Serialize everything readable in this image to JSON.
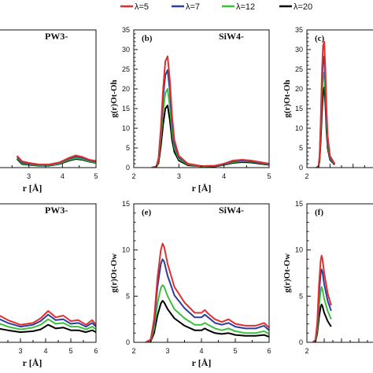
{
  "legend": {
    "entries": [
      {
        "label": "λ=5",
        "color": "#e03030"
      },
      {
        "label": "λ=7",
        "color": "#2b3f9e"
      },
      {
        "label": "λ=12",
        "color": "#3cbf3c"
      },
      {
        "label": "λ=20",
        "color": "#000000"
      }
    ]
  },
  "chart_data": [
    {
      "type": "line",
      "panel": "",
      "molecule": "PW3-",
      "xlabel": "r [Å]",
      "ylabel": "",
      "xlim": [
        2,
        5
      ],
      "ylim": [
        0,
        35
      ],
      "xticks": [
        3,
        4,
        5
      ],
      "yticks": [],
      "series": [
        {
          "legend": "λ=5",
          "x": [
            2.65,
            2.8,
            3.0,
            3.3,
            3.6,
            3.9,
            4.2,
            4.4,
            4.6,
            4.8,
            5.0
          ],
          "y": [
            3.0,
            1.6,
            1.2,
            0.8,
            0.8,
            1.3,
            2.5,
            3.1,
            2.7,
            2.0,
            1.7
          ]
        },
        {
          "legend": "λ=7",
          "x": [
            2.65,
            2.8,
            3.0,
            3.3,
            3.6,
            3.9,
            4.2,
            4.4,
            4.6,
            4.8,
            5.0
          ],
          "y": [
            2.8,
            1.3,
            1.0,
            0.7,
            0.7,
            1.2,
            2.3,
            2.8,
            2.5,
            1.8,
            1.5
          ]
        },
        {
          "legend": "λ=12",
          "x": [
            2.65,
            2.8,
            3.0,
            3.3,
            3.6,
            3.9,
            4.2,
            4.4,
            4.6,
            4.8,
            5.0
          ],
          "y": [
            2.5,
            1.1,
            0.8,
            0.6,
            0.6,
            1.0,
            2.0,
            2.4,
            2.2,
            1.6,
            1.3
          ]
        },
        {
          "legend": "λ=20",
          "x": [
            2.65,
            2.8,
            3.0,
            3.3,
            3.6,
            3.9,
            4.2,
            4.4,
            4.6,
            4.8,
            5.0
          ],
          "y": [
            2.2,
            0.9,
            0.7,
            0.5,
            0.5,
            0.9,
            1.8,
            2.2,
            2.0,
            1.5,
            1.2
          ]
        }
      ]
    },
    {
      "type": "line",
      "panel": "(b)",
      "molecule": "SiW4-",
      "xlabel": "r [Å]",
      "ylabel": "g(r)Ot-Oh",
      "xlim": [
        2,
        5
      ],
      "ylim": [
        0,
        35
      ],
      "xticks": [
        2,
        3,
        4,
        5
      ],
      "yticks": [
        0,
        5,
        10,
        15,
        20,
        25,
        30,
        35
      ],
      "series": [
        {
          "legend": "λ=5",
          "x": [
            2.4,
            2.5,
            2.55,
            2.6,
            2.65,
            2.7,
            2.75,
            2.8,
            2.85,
            2.9,
            3.0,
            3.2,
            3.5,
            3.8,
            4.0,
            4.2,
            4.4,
            4.6,
            4.8,
            5.0
          ],
          "y": [
            0,
            0.3,
            2.5,
            10,
            20,
            27,
            28.3,
            22,
            13,
            7,
            3,
            1,
            0.4,
            0.5,
            1,
            1.8,
            2,
            1.8,
            1.4,
            1
          ]
        },
        {
          "legend": "λ=7",
          "x": [
            2.4,
            2.5,
            2.55,
            2.6,
            2.65,
            2.7,
            2.75,
            2.8,
            2.85,
            2.9,
            3.0,
            3.2,
            3.5,
            3.8,
            4.0,
            4.2,
            4.4,
            4.6,
            4.8,
            5.0
          ],
          "y": [
            0,
            0.3,
            2.2,
            9,
            18,
            23.5,
            24.8,
            19.5,
            11.5,
            6,
            2.6,
            0.9,
            0.4,
            0.4,
            0.9,
            1.6,
            1.8,
            1.6,
            1.3,
            0.9
          ]
        },
        {
          "legend": "λ=12",
          "x": [
            2.4,
            2.5,
            2.55,
            2.6,
            2.65,
            2.7,
            2.75,
            2.8,
            2.85,
            2.9,
            3.0,
            3.2,
            3.5,
            3.8,
            4.0,
            4.2,
            4.4,
            4.6,
            4.8,
            5.0
          ],
          "y": [
            0,
            0.2,
            1.8,
            7.5,
            14.5,
            19,
            20,
            15.5,
            9,
            5,
            2.2,
            0.8,
            0.3,
            0.4,
            0.8,
            1.4,
            1.6,
            1.5,
            1.2,
            0.8
          ]
        },
        {
          "legend": "λ=20",
          "x": [
            2.4,
            2.5,
            2.55,
            2.6,
            2.65,
            2.7,
            2.75,
            2.8,
            2.85,
            2.9,
            3.0,
            3.2,
            3.5,
            3.8,
            4.0,
            4.2,
            4.4,
            4.6,
            4.8,
            5.0
          ],
          "y": [
            0,
            0.2,
            1.2,
            5.5,
            11,
            15,
            15.8,
            12,
            7,
            4,
            1.8,
            0.6,
            0.3,
            0.3,
            0.7,
            1.2,
            1.4,
            1.3,
            1,
            0.7
          ]
        }
      ]
    },
    {
      "type": "line",
      "panel": "(c)",
      "molecule": "",
      "xlabel": "",
      "ylabel": "g(r)Ot-Oh",
      "xlim": [
        2,
        5
      ],
      "ylim": [
        0,
        35
      ],
      "xticks": [
        2
      ],
      "yticks": [
        0,
        5,
        10,
        15,
        20,
        25,
        30,
        35
      ],
      "series": [
        {
          "legend": "λ=5",
          "x": [
            2.4,
            2.5,
            2.55,
            2.6,
            2.65,
            2.7,
            2.75,
            2.8,
            2.85,
            2.9,
            3.0,
            3.2
          ],
          "y": [
            0,
            0.3,
            3,
            12,
            24,
            31,
            32,
            25,
            15,
            8,
            3,
            1
          ]
        },
        {
          "legend": "λ=7",
          "x": [
            2.4,
            2.5,
            2.55,
            2.6,
            2.65,
            2.7,
            2.75,
            2.8,
            2.85,
            2.9,
            3.0,
            3.2
          ],
          "y": [
            0,
            0.3,
            2.6,
            10.5,
            21,
            27,
            28.3,
            22,
            13,
            7,
            2.6,
            0.9
          ]
        },
        {
          "legend": "λ=12",
          "x": [
            2.4,
            2.5,
            2.55,
            2.6,
            2.65,
            2.7,
            2.75,
            2.8,
            2.85,
            2.9,
            3.0,
            3.2
          ],
          "y": [
            0,
            0.2,
            2.2,
            9,
            18,
            23,
            24.2,
            19,
            11.5,
            6,
            2.3,
            0.8
          ]
        },
        {
          "legend": "λ=20",
          "x": [
            2.4,
            2.5,
            2.55,
            2.6,
            2.65,
            2.7,
            2.75,
            2.8,
            2.85,
            2.9,
            3.0,
            3.2
          ],
          "y": [
            0,
            0.2,
            1.6,
            7,
            14,
            19,
            20.4,
            16,
            9.5,
            5,
            2,
            0.7
          ]
        }
      ]
    },
    {
      "type": "line",
      "panel": "",
      "molecule": "PW3-",
      "xlabel": "r [Å]",
      "ylabel": "",
      "xlim": [
        2,
        6
      ],
      "ylim": [
        0,
        15
      ],
      "xticks": [
        3,
        4,
        5,
        6
      ],
      "yticks": [],
      "series": [
        {
          "legend": "λ=5",
          "x": [
            2.1,
            2.5,
            3.0,
            3.5,
            3.8,
            4.1,
            4.4,
            4.7,
            5.0,
            5.3,
            5.6,
            5.85,
            6.0
          ],
          "y": [
            3.0,
            2.4,
            1.9,
            2.1,
            2.6,
            3.4,
            2.7,
            2.9,
            2.3,
            2.4,
            1.9,
            2.4,
            1.9
          ]
        },
        {
          "legend": "λ=7",
          "x": [
            2.1,
            2.5,
            3.0,
            3.5,
            3.8,
            4.1,
            4.4,
            4.7,
            5.0,
            5.3,
            5.6,
            5.85,
            6.0
          ],
          "y": [
            2.6,
            2.1,
            1.7,
            1.9,
            2.3,
            3.0,
            2.4,
            2.5,
            2.0,
            2.1,
            1.7,
            2.1,
            1.7
          ]
        },
        {
          "legend": "λ=12",
          "x": [
            2.1,
            2.5,
            3.0,
            3.5,
            3.8,
            4.1,
            4.4,
            4.7,
            5.0,
            5.3,
            5.6,
            5.85,
            6.0
          ],
          "y": [
            2.1,
            1.7,
            1.4,
            1.6,
            1.9,
            2.5,
            2.0,
            2.1,
            1.7,
            1.7,
            1.4,
            1.7,
            1.4
          ]
        },
        {
          "legend": "λ=20",
          "x": [
            2.1,
            2.5,
            3.0,
            3.5,
            3.8,
            4.1,
            4.4,
            4.7,
            5.0,
            5.3,
            5.6,
            5.85,
            6.0
          ],
          "y": [
            1.5,
            1.3,
            1.1,
            1.2,
            1.4,
            1.9,
            1.5,
            1.6,
            1.3,
            1.3,
            1.1,
            1.3,
            1.1
          ]
        }
      ]
    },
    {
      "type": "line",
      "panel": "(e)",
      "molecule": "SiW4-",
      "xlabel": "r [Å]",
      "ylabel": "g(r)Ot-Ow",
      "xlim": [
        2,
        6
      ],
      "ylim": [
        0,
        15
      ],
      "xticks": [
        2,
        3,
        4,
        5,
        6
      ],
      "yticks": [
        0,
        5,
        10,
        15
      ],
      "series": [
        {
          "legend": "λ=5",
          "x": [
            2.35,
            2.5,
            2.6,
            2.7,
            2.8,
            2.85,
            2.9,
            3.0,
            3.2,
            3.5,
            3.8,
            4.0,
            4.1,
            4.2,
            4.4,
            4.6,
            4.8,
            5.0,
            5.3,
            5.6,
            5.85,
            6.0
          ],
          "y": [
            0,
            0.3,
            2.5,
            7,
            10,
            10.7,
            10.3,
            8.5,
            6,
            4.3,
            3.2,
            3.2,
            3.5,
            3.1,
            2.5,
            2.2,
            2.5,
            2.0,
            1.8,
            1.8,
            2.1,
            1.6
          ]
        },
        {
          "legend": "λ=7",
          "x": [
            2.35,
            2.5,
            2.6,
            2.7,
            2.8,
            2.85,
            2.9,
            3.0,
            3.2,
            3.5,
            3.8,
            4.0,
            4.1,
            4.2,
            4.4,
            4.6,
            4.8,
            5.0,
            5.3,
            5.6,
            5.85,
            6.0
          ],
          "y": [
            0,
            0.3,
            2.1,
            6,
            8.5,
            9.0,
            8.7,
            7.2,
            5.1,
            3.7,
            2.7,
            2.7,
            3.0,
            2.7,
            2.1,
            1.9,
            2.1,
            1.7,
            1.5,
            1.5,
            1.8,
            1.3
          ]
        },
        {
          "legend": "λ=12",
          "x": [
            2.35,
            2.5,
            2.6,
            2.7,
            2.8,
            2.85,
            2.9,
            3.0,
            3.2,
            3.5,
            3.8,
            4.0,
            4.1,
            4.2,
            4.4,
            4.6,
            4.8,
            5.0,
            5.3,
            5.6,
            5.85,
            6.0
          ],
          "y": [
            0,
            0.2,
            1.5,
            4.2,
            5.9,
            6.2,
            6.0,
            5.0,
            3.6,
            2.6,
            1.9,
            1.9,
            2.1,
            1.9,
            1.5,
            1.3,
            1.5,
            1.2,
            1.0,
            1.0,
            1.2,
            0.9
          ]
        },
        {
          "legend": "λ=20",
          "x": [
            2.35,
            2.5,
            2.6,
            2.7,
            2.8,
            2.85,
            2.9,
            3.0,
            3.2,
            3.5,
            3.8,
            4.0,
            4.1,
            4.2,
            4.4,
            4.6,
            4.8,
            5.0,
            5.3,
            5.6,
            5.85,
            6.0
          ],
          "y": [
            0,
            0.1,
            1.0,
            2.9,
            4.2,
            4.5,
            4.3,
            3.6,
            2.6,
            1.8,
            1.3,
            1.3,
            1.5,
            1.3,
            1.0,
            0.9,
            1.0,
            0.8,
            0.7,
            0.7,
            0.8,
            0.6
          ]
        }
      ]
    },
    {
      "type": "line",
      "panel": "(f)",
      "molecule": "",
      "xlabel": "",
      "ylabel": "g(r)Ot-Ow",
      "xlim": [
        2,
        6
      ],
      "ylim": [
        0,
        15
      ],
      "xticks": [
        2
      ],
      "yticks": [
        0,
        5,
        10,
        15
      ],
      "series": [
        {
          "legend": "λ=5",
          "x": [
            2.35,
            2.5,
            2.6,
            2.7,
            2.8,
            2.85,
            2.9,
            3.0,
            3.2,
            3.4
          ],
          "y": [
            0,
            0.3,
            2.2,
            6.3,
            8.9,
            9.4,
            9.0,
            7.5,
            5.3,
            4.0
          ]
        },
        {
          "legend": "λ=7",
          "x": [
            2.35,
            2.5,
            2.6,
            2.7,
            2.8,
            2.85,
            2.9,
            3.0,
            3.2,
            3.4
          ],
          "y": [
            0,
            0.3,
            1.9,
            5.3,
            7.5,
            7.9,
            7.6,
            6.3,
            4.5,
            3.4
          ]
        },
        {
          "legend": "λ=12",
          "x": [
            2.35,
            2.5,
            2.6,
            2.7,
            2.8,
            2.85,
            2.9,
            3.0,
            3.2,
            3.4
          ],
          "y": [
            0,
            0.2,
            1.4,
            4.0,
            5.6,
            6.0,
            5.7,
            4.7,
            3.4,
            2.5
          ]
        },
        {
          "legend": "λ=20",
          "x": [
            2.35,
            2.5,
            2.6,
            2.7,
            2.8,
            2.85,
            2.9,
            3.0,
            3.2,
            3.4
          ],
          "y": [
            0,
            0.1,
            1.0,
            2.7,
            3.9,
            4.1,
            3.9,
            3.2,
            2.3,
            1.7
          ]
        }
      ]
    }
  ]
}
